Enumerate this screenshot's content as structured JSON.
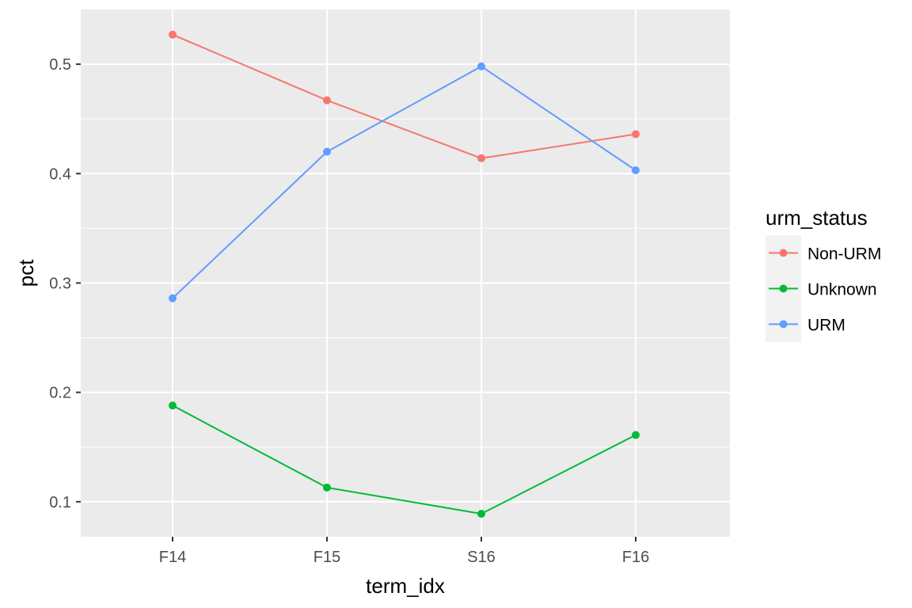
{
  "chart_data": {
    "type": "line",
    "title": "",
    "xlabel": "term_idx",
    "ylabel": "pct",
    "categories": [
      "F14",
      "F15",
      "S16",
      "F16"
    ],
    "ylim": [
      0.068,
      0.55
    ],
    "yticks": [
      0.1,
      0.2,
      0.3,
      0.4,
      0.5
    ],
    "ytick_labels": [
      "0.1",
      "0.2",
      "0.3",
      "0.4",
      "0.5"
    ],
    "grid": true,
    "legend": {
      "title": "urm_status",
      "position": "right"
    },
    "series": [
      {
        "name": "Non-URM",
        "color": "#F8766D",
        "values": [
          0.527,
          0.467,
          0.414,
          0.436
        ]
      },
      {
        "name": "Unknown",
        "color": "#00BA38",
        "values": [
          0.188,
          0.113,
          0.089,
          0.161
        ]
      },
      {
        "name": "URM",
        "color": "#619CFF",
        "values": [
          0.286,
          0.42,
          0.498,
          0.403
        ]
      }
    ]
  }
}
